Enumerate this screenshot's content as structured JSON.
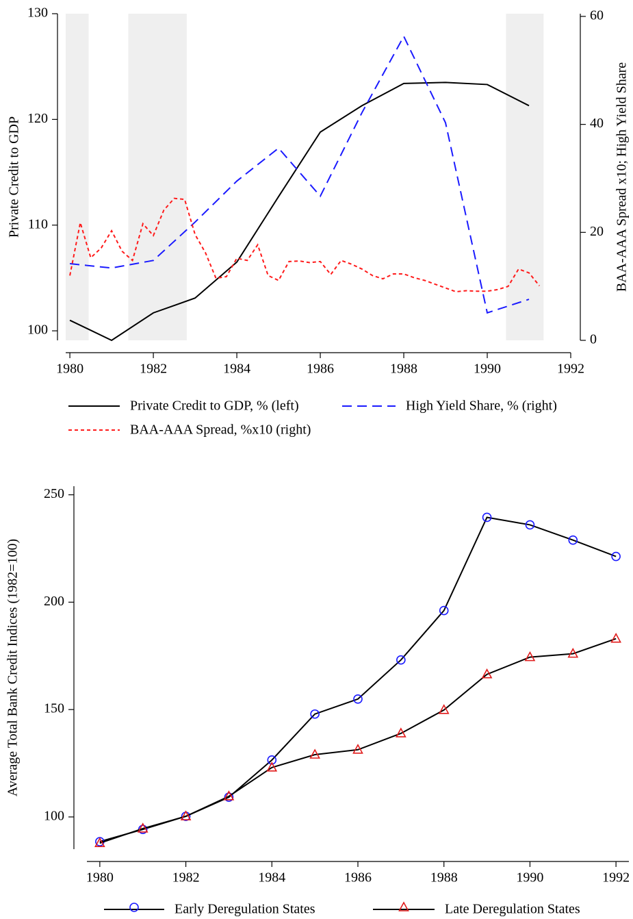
{
  "chart_data": [
    {
      "type": "line",
      "y_label": "Private Credit to GDP",
      "y2_label": "BAA-AAA Spread x10; High Yield Share",
      "xlim": [
        1979.9,
        1992
      ],
      "xticks": [
        1980,
        1982,
        1984,
        1986,
        1988,
        1990,
        1992
      ],
      "ylim": [
        99.1,
        130
      ],
      "yticks": [
        100,
        110,
        120,
        130
      ],
      "y2lim": [
        0,
        60.5
      ],
      "y2ticks": [
        0,
        20,
        40,
        60
      ],
      "recessions": [
        [
          1979.9,
          1980.45
        ],
        [
          1981.4,
          1982.8
        ],
        [
          1990.45,
          1991.35
        ]
      ],
      "recession_color": "#efefef",
      "series": [
        {
          "name": "Private Credit to GDP, % (left)",
          "color": "#000000",
          "dash": "solid",
          "x": [
            1980,
            1981,
            1982,
            1983,
            1984,
            1985,
            1986,
            1987,
            1988,
            1989,
            1990,
            1991
          ],
          "values": [
            101.0,
            99.1,
            101.7,
            103.1,
            106.5,
            112.7,
            118.8,
            121.3,
            123.4,
            123.5,
            123.3,
            121.3
          ]
        },
        {
          "name": "High Yield Share, % (right)",
          "color": "#1a1aff",
          "dash": "dashed",
          "axis": "y2",
          "x": [
            1980,
            1981,
            1982,
            1983,
            1984,
            1985,
            1986,
            1987,
            1988,
            1989,
            1990,
            1991
          ],
          "values": [
            14.2,
            13.4,
            14.8,
            21.9,
            29.5,
            35.6,
            26.7,
            42.2,
            56.3,
            40.3,
            5.1,
            7.6
          ]
        },
        {
          "name": "BAA-AAA Spread, %x10 (right)",
          "color": "#ff1a1a",
          "dash": "dotted",
          "axis": "y2",
          "x": [
            1980,
            1980.25,
            1980.5,
            1980.75,
            1981,
            1981.25,
            1981.5,
            1981.75,
            1982,
            1982.25,
            1982.5,
            1982.75,
            1983,
            1983.25,
            1983.5,
            1983.75,
            1984,
            1984.25,
            1984.5,
            1984.75,
            1985,
            1985.25,
            1985.5,
            1985.75,
            1986,
            1986.25,
            1986.5,
            1986.75,
            1987,
            1987.25,
            1987.5,
            1987.75,
            1988,
            1988.25,
            1988.5,
            1988.75,
            1989,
            1989.25,
            1989.5,
            1989.75,
            1990,
            1990.25,
            1990.5,
            1990.75,
            1991,
            1991.25
          ],
          "values": [
            12.0,
            21.8,
            15.3,
            17.1,
            20.3,
            16.5,
            14.8,
            21.6,
            19.4,
            24.1,
            26.3,
            26.1,
            19.6,
            16.2,
            11.5,
            11.8,
            15.2,
            14.8,
            17.7,
            12.0,
            11.1,
            14.6,
            14.7,
            14.4,
            14.6,
            12.2,
            14.8,
            14.1,
            13.2,
            12.0,
            11.4,
            12.3,
            12.3,
            11.6,
            11.1,
            10.4,
            9.7,
            9.0,
            9.2,
            9.1,
            9.1,
            9.4,
            10.0,
            13.2,
            12.5,
            10.1
          ]
        }
      ]
    },
    {
      "type": "line",
      "y_label": "Average Total Bank Credit Indices (1982=100)",
      "xlim": [
        1979.7,
        1992.3
      ],
      "xticks": [
        1980,
        1982,
        1984,
        1986,
        1988,
        1990,
        1992
      ],
      "ylim": [
        85,
        254
      ],
      "yticks": [
        100,
        150,
        200,
        250
      ],
      "series": [
        {
          "name": "Early Deregulation States",
          "color": "#000000",
          "marker": "circle",
          "marker_color": "#1a1aff",
          "x": [
            1980,
            1981,
            1982,
            1983,
            1984,
            1985,
            1986,
            1987,
            1988,
            1989,
            1990,
            1991,
            1992
          ],
          "values": [
            88.5,
            94.2,
            100.3,
            109.2,
            126.5,
            147.9,
            154.9,
            173.1,
            196.1,
            239.5,
            236.0,
            228.9,
            221.3
          ]
        },
        {
          "name": "Late Deregulation States",
          "color": "#000000",
          "marker": "triangle",
          "marker_color": "#e01a1a",
          "x": [
            1980,
            1981,
            1982,
            1983,
            1984,
            1985,
            1986,
            1987,
            1988,
            1989,
            1990,
            1991,
            1992
          ],
          "values": [
            87.8,
            94.6,
            100.3,
            109.6,
            123.0,
            129.0,
            131.3,
            138.9,
            149.8,
            166.4,
            174.4,
            176.0,
            183.0
          ]
        }
      ]
    }
  ]
}
